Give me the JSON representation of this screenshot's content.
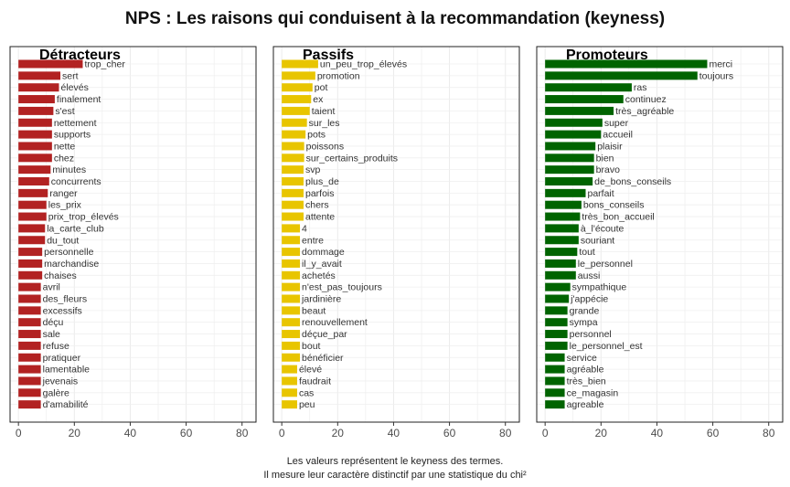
{
  "page_title": "NPS : Les raisons qui conduisent à la recommandation (keyness)",
  "caption": {
    "line1": "Les valeurs représentent le keyness des termes.",
    "line2": "Il mesure leur caractère distinctif par une statistique du chi²"
  },
  "chart_data": [
    {
      "type": "bar",
      "orientation": "horizontal",
      "title": "Détracteurs",
      "color": "#B22222",
      "xlim": [
        -3,
        85
      ],
      "xticks": [
        0,
        20,
        40,
        60,
        80
      ],
      "grid": true,
      "categories": [
        "trop_cher",
        "sert",
        "élevés",
        "finalement",
        "s'est",
        "nettement",
        "supports",
        "nette",
        "chez",
        "minutes",
        "concurrents",
        "ranger",
        "les_prix",
        "prix_trop_élevés",
        "la_carte_club",
        "du_tout",
        "personnelle",
        "marchandise",
        "chaises",
        "avril",
        "des_fleurs",
        "excessifs",
        "déçu",
        "sale",
        "refuse",
        "pratiquer",
        "lamentable",
        "jevenais",
        "galère",
        "d'amabilité"
      ],
      "values": [
        23,
        15,
        14.5,
        13,
        12.5,
        12,
        12,
        12,
        12,
        11.5,
        11,
        10.5,
        10,
        10,
        9.5,
        9.5,
        8.5,
        8.5,
        8.5,
        8,
        8,
        8,
        8,
        8,
        8,
        8,
        8,
        8,
        8,
        8
      ]
    },
    {
      "type": "bar",
      "orientation": "horizontal",
      "title": "Passifs",
      "color": "#E8C500",
      "xlim": [
        -3,
        85
      ],
      "xticks": [
        0,
        20,
        40,
        60,
        80
      ],
      "grid": true,
      "categories": [
        "un_peu_trop_élevés",
        "promotion",
        "pot",
        "ex",
        "taient",
        "sur_les",
        "pots",
        "poissons",
        "sur_certains_produits",
        "svp",
        "plus_de",
        "parfois",
        "chers",
        "attente",
        "4",
        "entre",
        "dommage",
        "il_y_avait",
        "achetés",
        "n'est_pas_toujours",
        "jardinière",
        "beaut",
        "renouvellement",
        "déçue_par",
        "bout",
        "bénéficier",
        "élevé",
        "faudrait",
        "cas",
        "peu"
      ],
      "values": [
        13,
        12,
        11,
        10.5,
        10,
        9,
        8.5,
        8,
        8,
        7.8,
        7.8,
        7.8,
        7.8,
        7.8,
        6.5,
        6.5,
        6.5,
        6.5,
        6.5,
        6.5,
        6.5,
        6.5,
        6.5,
        6.5,
        6.5,
        6.5,
        5.5,
        5.5,
        5.5,
        5.5
      ]
    },
    {
      "type": "bar",
      "orientation": "horizontal",
      "title": "Promoteurs",
      "color": "#006400",
      "xlim": [
        -3,
        85
      ],
      "xticks": [
        0,
        20,
        40,
        60,
        80
      ],
      "grid": true,
      "categories": [
        "merci",
        "toujours",
        "ras",
        "continuez",
        "très_agréable",
        "super",
        "accueil",
        "plaisir",
        "bien",
        "bravo",
        "de_bons_conseils",
        "parfait",
        "bons_conseils",
        "très_bon_accueil",
        "à_l'écoute",
        "souriant",
        "tout",
        "le_personnel",
        "aussi",
        "sympathique",
        "j'appécie",
        "grande",
        "sympa",
        "personnel",
        "le_personnel_est",
        "service",
        "agréable",
        "très_bien",
        "ce_magasin",
        "agreable"
      ],
      "values": [
        58,
        54.5,
        31,
        28,
        24.5,
        20.5,
        20,
        18,
        17.5,
        17.5,
        17,
        14.5,
        13,
        12.5,
        12,
        12,
        11.5,
        11,
        11,
        9,
        8.5,
        8,
        8,
        8,
        8,
        7,
        7,
        7,
        7,
        7
      ]
    }
  ]
}
